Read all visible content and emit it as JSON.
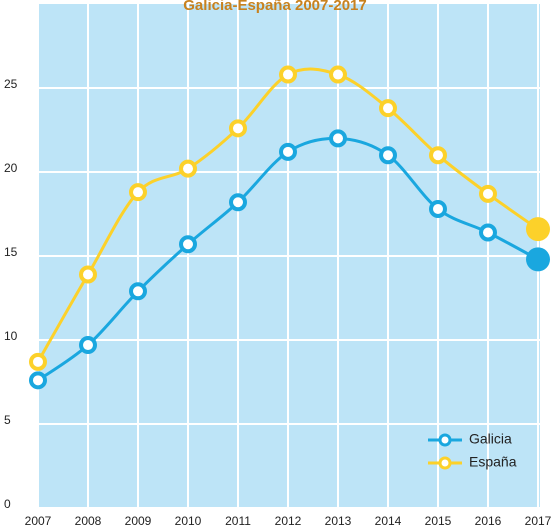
{
  "chart_data": {
    "type": "line",
    "title": "Galicia-España 2007-2017",
    "x": [
      2007,
      2008,
      2009,
      2010,
      2011,
      2012,
      2013,
      2014,
      2015,
      2016,
      2017
    ],
    "series": [
      {
        "name": "Galicia",
        "color": "#1aa7df",
        "values": [
          7.6,
          9.7,
          12.9,
          15.7,
          18.2,
          21.2,
          22.0,
          21.0,
          17.8,
          16.4,
          14.8
        ]
      },
      {
        "name": "España",
        "color": "#fcd12a",
        "values": [
          8.7,
          13.9,
          18.8,
          20.2,
          22.6,
          25.8,
          25.8,
          23.8,
          21.0,
          18.7,
          16.6
        ]
      }
    ],
    "xlim": [
      2007,
      2017
    ],
    "xticks": [
      2007,
      2008,
      2009,
      2010,
      2011,
      2012,
      2013,
      2014,
      2015,
      2016,
      2017
    ],
    "ylim": [
      0,
      30
    ],
    "yticks": [
      0,
      5,
      10,
      15,
      20,
      25
    ],
    "grid": true,
    "legend": "lower right"
  }
}
